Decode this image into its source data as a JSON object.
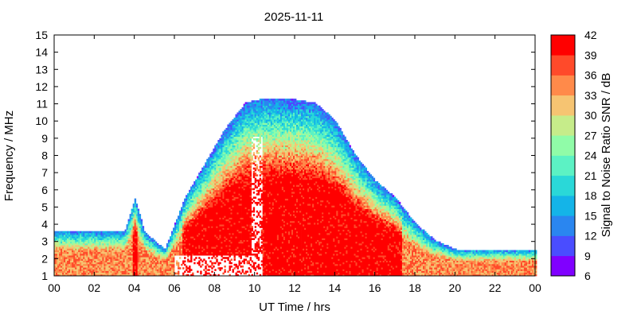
{
  "chart_data": {
    "type": "heatmap",
    "title": "2025-11-11",
    "xlabel": "UT Time / hrs",
    "ylabel": "Frequency / MHz",
    "xlim": [
      0,
      24
    ],
    "ylim": [
      1,
      15
    ],
    "x_ticks": [
      "00",
      "02",
      "04",
      "06",
      "08",
      "10",
      "12",
      "14",
      "16",
      "18",
      "20",
      "22",
      "00"
    ],
    "y_ticks": [
      "1",
      "2",
      "3",
      "4",
      "5",
      "6",
      "7",
      "8",
      "9",
      "10",
      "11",
      "12",
      "13",
      "14",
      "15"
    ],
    "colorbar": {
      "label": "Signal to Noise Ratio SNR / dB",
      "range": [
        6,
        42
      ],
      "ticks": [
        "6",
        "9",
        "12",
        "15",
        "18",
        "21",
        "24",
        "27",
        "30",
        "33",
        "36",
        "39",
        "42"
      ],
      "colors": [
        "#8000ff",
        "#4a4dff",
        "#2a86f0",
        "#14b4e8",
        "#2ad8d8",
        "#5cf2c4",
        "#90fca8",
        "#c6ec8a",
        "#f6c472",
        "#ff8a4a",
        "#ff4a2a",
        "#ff0000"
      ]
    },
    "envelope": {
      "description_hours": [
        0,
        3.5,
        4.0,
        4.5,
        5.5,
        6.5,
        7.5,
        8.5,
        9.5,
        10.5,
        12,
        13,
        14,
        15,
        16,
        17,
        18,
        19,
        20,
        22,
        24
      ],
      "max_freq_MHz": [
        3.6,
        3.6,
        5.5,
        3.5,
        2.5,
        5.5,
        7.5,
        9.5,
        11,
        11.3,
        11.2,
        11,
        10,
        8,
        6.5,
        5.5,
        4,
        3,
        2.5,
        2.5,
        2.5
      ]
    }
  }
}
